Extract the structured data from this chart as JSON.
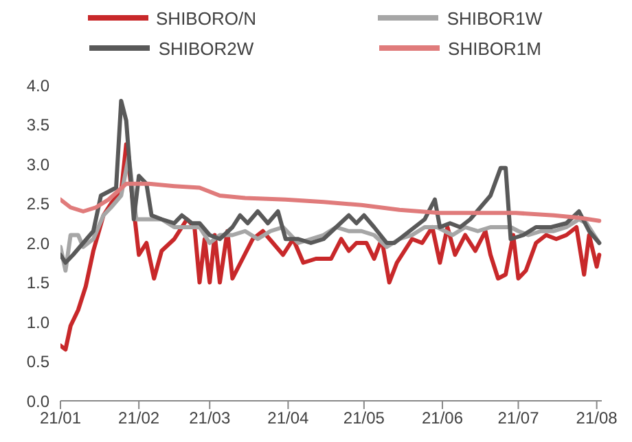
{
  "chart_data": {
    "type": "line",
    "legend": "top",
    "line_style": "solid",
    "xlim": [
      "--01-01",
      "--08-03"
    ],
    "xticks": [
      {
        "value": "--01-01",
        "label": "21/01"
      },
      {
        "value": "--02-01",
        "label": "21/02"
      },
      {
        "value": "--03-01",
        "label": "21/03"
      },
      {
        "value": "--04-01",
        "label": "21/04"
      },
      {
        "value": "--05-01",
        "label": "21/05"
      },
      {
        "value": "--06-01",
        "label": "21/06"
      },
      {
        "value": "--07-01",
        "label": "21/07"
      },
      {
        "value": "--08-01",
        "label": "21/08"
      }
    ],
    "ylim": [
      0,
      4
    ],
    "yticks": [
      {
        "value": 0,
        "label": "0.0"
      },
      {
        "value": 0.5,
        "label": "0.5"
      },
      {
        "value": 1,
        "label": "1.0"
      },
      {
        "value": 1.5,
        "label": "1.5"
      },
      {
        "value": 2,
        "label": "2.0"
      },
      {
        "value": 2.5,
        "label": "2.5"
      },
      {
        "value": 3,
        "label": "3.0"
      },
      {
        "value": 3.5,
        "label": "3.5"
      },
      {
        "value": 4,
        "label": "4.0"
      }
    ],
    "series": [
      {
        "name": "SHIBORO/N",
        "color": "#c8282a",
        "x": [
          "--01-01",
          "--01-03",
          "--01-05",
          "--01-08",
          "--01-11",
          "--01-14",
          "--01-18",
          "--01-21",
          "--01-25",
          "--01-27",
          "--01-29",
          "--02-01",
          "--02-04",
          "--02-07",
          "--02-10",
          "--02-15",
          "--02-20",
          "--02-23",
          "--02-25",
          "--02-27",
          "--03-01",
          "--03-03",
          "--03-05",
          "--03-08",
          "--03-10",
          "--03-14",
          "--03-18",
          "--03-22",
          "--03-26",
          "--03-30",
          "--04-03",
          "--04-07",
          "--04-12",
          "--04-18",
          "--04-22",
          "--04-25",
          "--04-28",
          "--05-02",
          "--05-05",
          "--05-08",
          "--05-11",
          "--05-14",
          "--05-17",
          "--05-20",
          "--05-24",
          "--05-28",
          "--05-31",
          "--06-03",
          "--06-06",
          "--06-10",
          "--06-14",
          "--06-18",
          "--06-20",
          "--06-23",
          "--06-26",
          "--06-29",
          "--07-01",
          "--07-04",
          "--07-08",
          "--07-12",
          "--07-16",
          "--07-20",
          "--07-24",
          "--07-27",
          "--07-29",
          "--08-01",
          "--08-02"
        ],
        "values": [
          0.7,
          0.65,
          0.95,
          1.15,
          1.45,
          1.9,
          2.35,
          2.5,
          2.65,
          3.25,
          2.7,
          1.85,
          2.0,
          1.55,
          1.9,
          2.05,
          2.3,
          2.2,
          1.5,
          2.05,
          1.5,
          2.1,
          1.5,
          2.15,
          1.55,
          1.8,
          2.05,
          2.15,
          2.0,
          1.85,
          2.05,
          1.75,
          1.8,
          1.8,
          2.05,
          1.9,
          2.0,
          2.0,
          1.8,
          2.05,
          1.5,
          1.75,
          1.9,
          2.05,
          2.0,
          2.2,
          1.75,
          2.2,
          1.85,
          2.1,
          1.9,
          2.15,
          1.85,
          1.55,
          1.6,
          2.1,
          1.55,
          1.65,
          2.0,
          2.1,
          2.05,
          2.1,
          2.2,
          1.6,
          2.1,
          1.7,
          1.85
        ]
      },
      {
        "name": "SHIBOR1W",
        "color": "#a6a6a6",
        "x": [
          "--01-01",
          "--01-03",
          "--01-05",
          "--01-08",
          "--01-10",
          "--01-14",
          "--01-18",
          "--01-21",
          "--01-25",
          "--01-28",
          "--01-31",
          "--02-04",
          "--02-10",
          "--02-15",
          "--02-20",
          "--02-25",
          "--03-01",
          "--03-05",
          "--03-10",
          "--03-15",
          "--03-20",
          "--03-25",
          "--03-30",
          "--04-05",
          "--04-10",
          "--04-15",
          "--04-20",
          "--04-25",
          "--04-30",
          "--05-05",
          "--05-10",
          "--05-15",
          "--05-20",
          "--05-25",
          "--05-30",
          "--06-05",
          "--06-10",
          "--06-15",
          "--06-20",
          "--06-25",
          "--06-28",
          "--07-01",
          "--07-05",
          "--07-10",
          "--07-15",
          "--07-20",
          "--07-25",
          "--07-28",
          "--08-01",
          "--08-02"
        ],
        "values": [
          1.95,
          1.65,
          2.1,
          2.1,
          1.95,
          2.05,
          2.35,
          2.45,
          2.6,
          3.1,
          2.3,
          2.3,
          2.3,
          2.2,
          2.2,
          2.2,
          2.0,
          2.1,
          2.1,
          2.15,
          2.05,
          2.15,
          2.2,
          2.0,
          2.05,
          2.1,
          2.2,
          2.15,
          2.15,
          2.1,
          1.95,
          2.05,
          2.1,
          2.2,
          2.2,
          2.1,
          2.2,
          2.15,
          2.2,
          2.2,
          2.2,
          2.15,
          2.1,
          2.15,
          2.15,
          2.2,
          2.3,
          2.25,
          2.05,
          2.0
        ]
      },
      {
        "name": "SHIBOR2W",
        "color": "#595959",
        "x": [
          "--01-01",
          "--01-03",
          "--01-06",
          "--01-10",
          "--01-14",
          "--01-17",
          "--01-20",
          "--01-23",
          "--01-25",
          "--01-27",
          "--01-30",
          "--02-01",
          "--02-04",
          "--02-06",
          "--02-10",
          "--02-15",
          "--02-18",
          "--02-22",
          "--02-25",
          "--03-01",
          "--03-05",
          "--03-10",
          "--03-13",
          "--03-16",
          "--03-20",
          "--03-24",
          "--03-28",
          "--03-31",
          "--04-05",
          "--04-10",
          "--04-15",
          "--04-20",
          "--04-25",
          "--04-28",
          "--05-01",
          "--05-05",
          "--05-10",
          "--05-13",
          "--05-17",
          "--05-21",
          "--05-25",
          "--05-29",
          "--05-31",
          "--06-04",
          "--06-08",
          "--06-12",
          "--06-16",
          "--06-20",
          "--06-24",
          "--06-26",
          "--06-28",
          "--07-03",
          "--07-08",
          "--07-14",
          "--07-20",
          "--07-25",
          "--07-29",
          "--08-02"
        ],
        "values": [
          1.85,
          1.75,
          1.85,
          2.0,
          2.15,
          2.6,
          2.65,
          2.7,
          3.8,
          3.55,
          2.3,
          2.85,
          2.75,
          2.35,
          2.3,
          2.25,
          2.35,
          2.25,
          2.25,
          2.1,
          2.05,
          2.2,
          2.35,
          2.25,
          2.4,
          2.25,
          2.4,
          2.05,
          2.05,
          2.0,
          2.05,
          2.2,
          2.35,
          2.25,
          2.35,
          2.2,
          2.0,
          2.0,
          2.1,
          2.2,
          2.3,
          2.55,
          2.2,
          2.25,
          2.2,
          2.3,
          2.45,
          2.6,
          2.95,
          2.95,
          2.05,
          2.1,
          2.2,
          2.2,
          2.25,
          2.4,
          2.15,
          2.0
        ]
      },
      {
        "name": "SHIBOR1M",
        "color": "#e07b7b",
        "x": [
          "--01-01",
          "--01-05",
          "--01-10",
          "--01-15",
          "--01-20",
          "--01-27",
          "--02-05",
          "--02-15",
          "--02-25",
          "--03-05",
          "--03-15",
          "--03-31",
          "--04-15",
          "--04-30",
          "--05-15",
          "--05-31",
          "--06-15",
          "--06-30",
          "--07-15",
          "--07-25",
          "--08-02"
        ],
        "values": [
          2.55,
          2.45,
          2.4,
          2.45,
          2.55,
          2.75,
          2.75,
          2.72,
          2.7,
          2.6,
          2.57,
          2.55,
          2.52,
          2.48,
          2.42,
          2.38,
          2.38,
          2.38,
          2.35,
          2.32,
          2.28
        ]
      }
    ]
  }
}
